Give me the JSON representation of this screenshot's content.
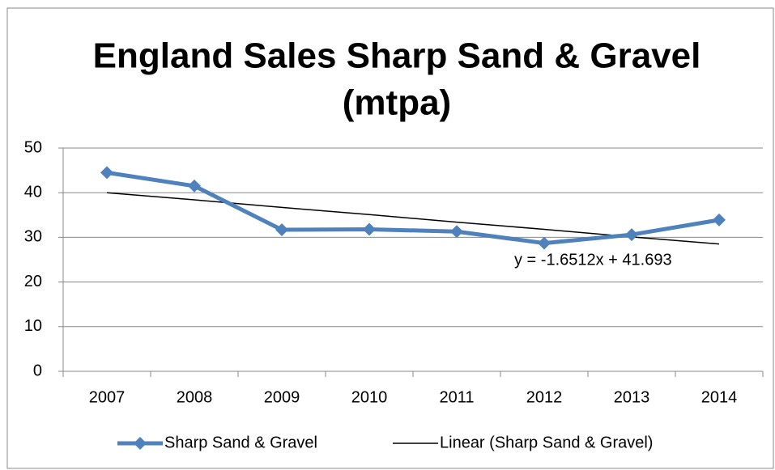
{
  "chart_data": {
    "type": "line",
    "title": [
      "England Sales Sharp Sand & Gravel",
      "(mtpa)"
    ],
    "categories": [
      "2007",
      "2008",
      "2009",
      "2010",
      "2011",
      "2012",
      "2013",
      "2014"
    ],
    "series": [
      {
        "name": "Sharp Sand & Gravel",
        "color": "#4f81bd",
        "marker": "diamond",
        "values": [
          44.5,
          41.5,
          31.7,
          31.8,
          31.3,
          28.7,
          30.6,
          33.9
        ]
      },
      {
        "name": "Linear (Sharp Sand & Gravel)",
        "color": "#000000",
        "values": [
          40.0,
          38.4,
          36.7,
          35.1,
          33.4,
          31.8,
          30.1,
          28.5
        ]
      }
    ],
    "annotation": "y = -1.6512x + 41.693",
    "ylim": [
      0,
      50
    ],
    "yticks": [
      0,
      10,
      20,
      30,
      40,
      50
    ],
    "grid": true,
    "legend": "bottom"
  }
}
